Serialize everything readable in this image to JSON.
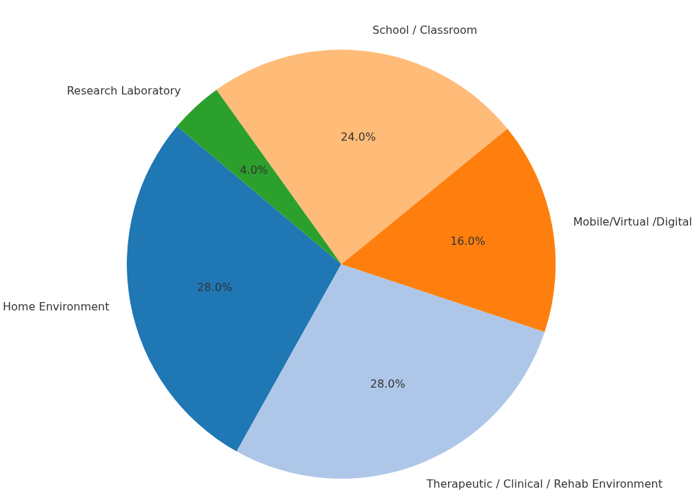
{
  "chart_data": {
    "type": "pie",
    "categories": [
      "Home Environment",
      "Therapeutic / Clinical / Rehab Environment",
      "Mobile/Virtual /Digital",
      "School / Classroom",
      "Research Laboratory"
    ],
    "values": [
      28,
      28,
      16,
      24,
      4
    ],
    "colors": [
      "#1f77b4",
      "#aec7e8",
      "#ff7f0e",
      "#ffbb78",
      "#2ca02c"
    ],
    "value_labels": [
      "28.0%",
      "28.0%",
      "16.0%",
      "24.0%",
      "4.0%"
    ]
  }
}
